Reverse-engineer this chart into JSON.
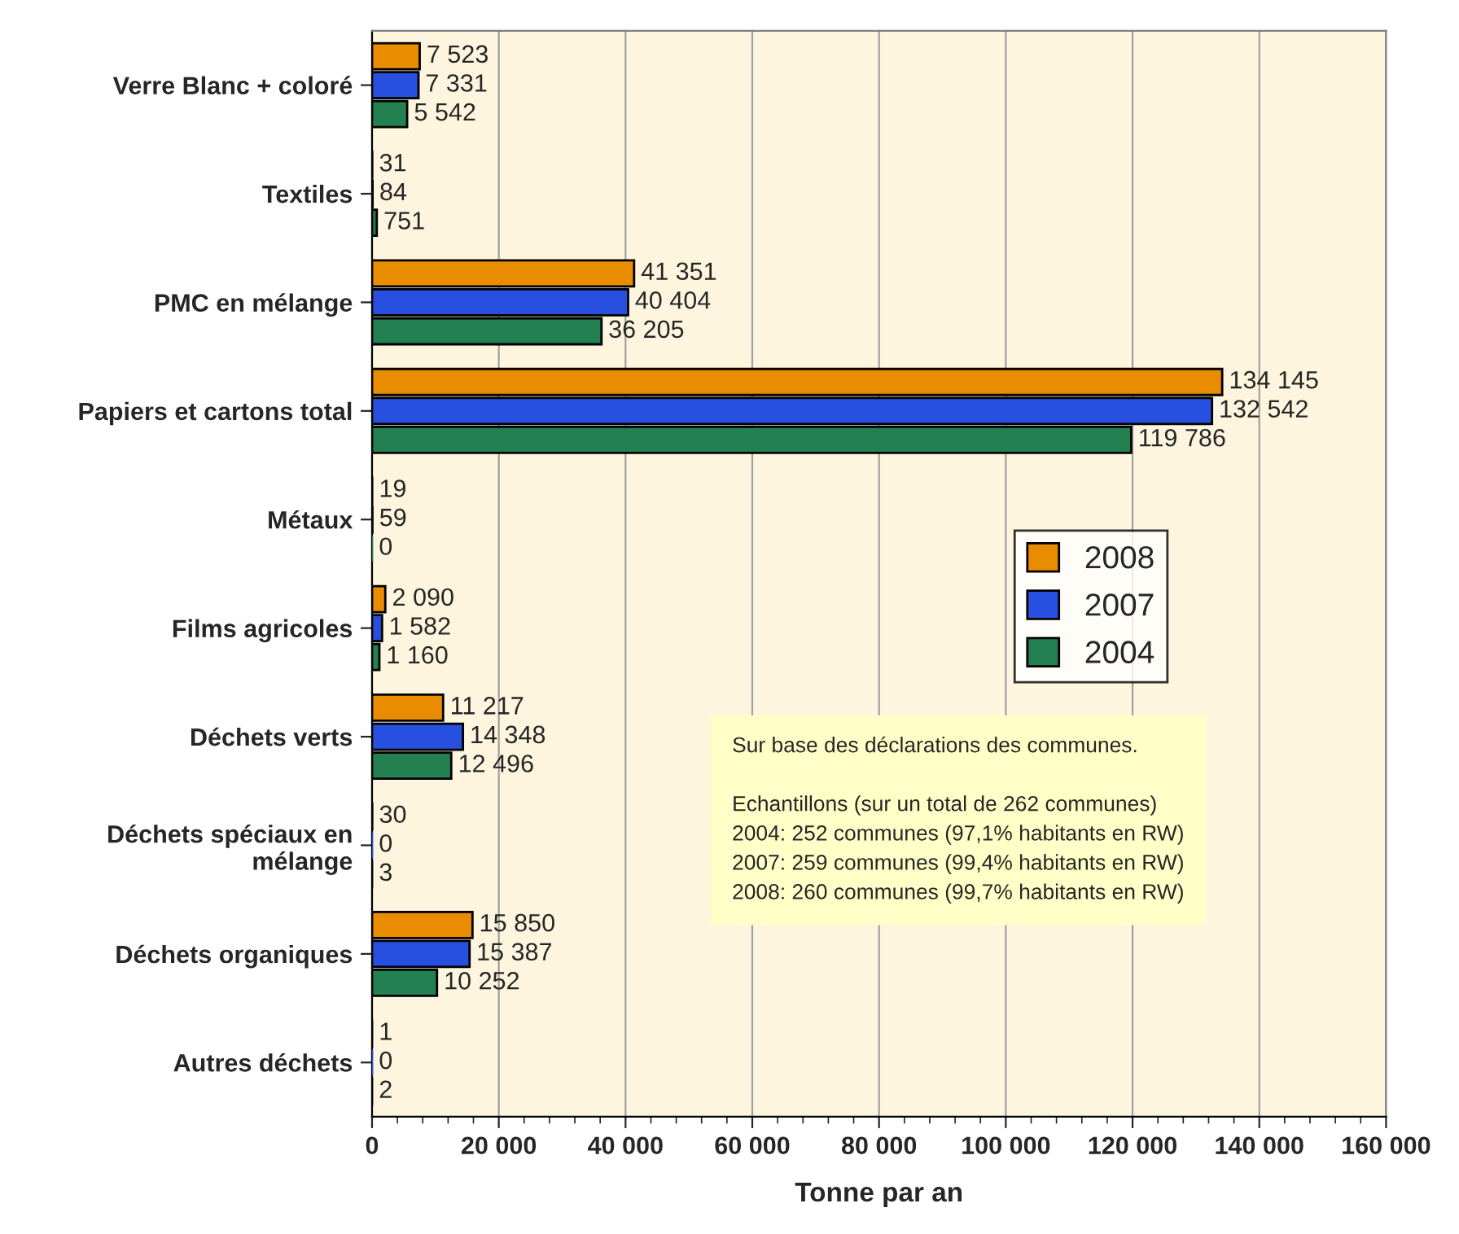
{
  "chart_data": {
    "type": "bar",
    "orientation": "horizontal",
    "xlabel": "Tonne par an",
    "categories": [
      "Verre Blanc + coloré",
      "Textiles",
      "PMC en mélange",
      "Papiers et cartons total",
      "Métaux",
      "Films agricoles",
      "Déchets verts",
      "Déchets spéciaux en\nmélange",
      "Déchets organiques",
      "Autres déchets"
    ],
    "series": [
      {
        "name": "2008",
        "color": "#e98c00",
        "values": [
          7523,
          31,
          41351,
          134145,
          19,
          2090,
          11217,
          30,
          15850,
          1
        ],
        "value_labels": [
          "7 523",
          "31",
          "41 351",
          "134 145",
          "19",
          "2 090",
          "11 217",
          "30",
          "15 850",
          "1"
        ]
      },
      {
        "name": "2007",
        "color": "#2850e0",
        "values": [
          7331,
          84,
          40404,
          132542,
          59,
          1582,
          14348,
          0,
          15387,
          0
        ],
        "value_labels": [
          "7 331",
          "84",
          "40 404",
          "132 542",
          "59",
          "1 582",
          "14 348",
          "0",
          "15 387",
          "0"
        ]
      },
      {
        "name": "2004",
        "color": "#238050",
        "values": [
          5542,
          751,
          36205,
          119786,
          0,
          1160,
          12496,
          3,
          10252,
          2
        ],
        "value_labels": [
          "5 542",
          "751",
          "36 205",
          "119 786",
          "0",
          "1 160",
          "12 496",
          "3",
          "10 252",
          "2"
        ]
      }
    ],
    "xlim": [
      0,
      160000
    ],
    "xticks": [
      0,
      {
        "value": 20000,
        "label": "20 000"
      },
      {
        "value": 40000,
        "label": "40 000"
      },
      {
        "value": 60000,
        "label": "60 000"
      },
      {
        "value": 80000,
        "label": "80 000"
      },
      {
        "value": 100000,
        "label": "100 000"
      },
      {
        "value": 120000,
        "label": "120 000"
      },
      {
        "value": 140000,
        "label": "140 000"
      },
      {
        "value": 160000,
        "label": "160 000"
      }
    ],
    "grid": "x",
    "legend": "right",
    "annotations": [
      "Sur base des déclarations des communes.\n\nEchantillons (sur un total de 262 communes)\n2004: 252 communes (97,1% habitants en RW)\n2007: 259 communes (99,4% habitants en RW)\n2008: 260 communes (99,7% habitants en RW)"
    ]
  }
}
